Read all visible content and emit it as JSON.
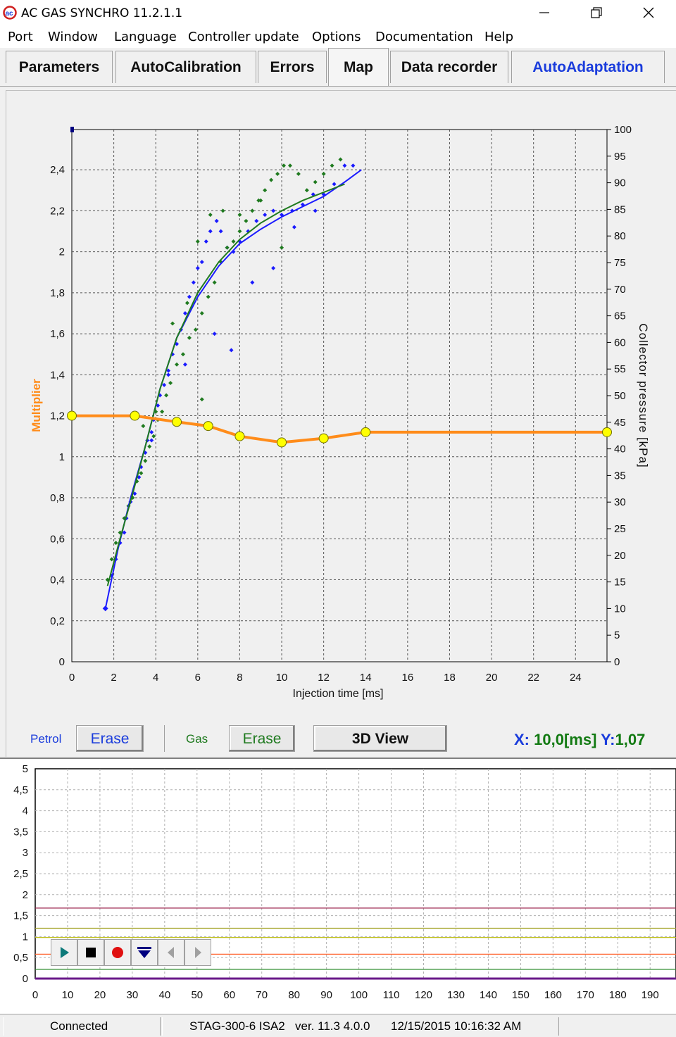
{
  "window": {
    "title": "AC GAS SYNCHRO  11.2.1.1",
    "minimize_icon": "minimize-icon",
    "restore_icon": "restore-icon",
    "close_icon": "close-icon"
  },
  "menu": [
    "Port",
    "Window",
    "Language",
    "Controller update",
    "Options",
    "Documentation",
    "Help"
  ],
  "tabs": [
    {
      "label": "Parameters"
    },
    {
      "label": "AutoCalibration"
    },
    {
      "label": "Errors"
    },
    {
      "label": "Map"
    },
    {
      "label": "Data recorder"
    },
    {
      "label": "AutoAdaptation"
    }
  ],
  "colors": {
    "petrol": "#1a1aff",
    "gas": "#1f7a1f",
    "multiplier": "#ff8c1a",
    "readout_blue": "#1a3cdc",
    "readout_green": "#127a12"
  },
  "controls": {
    "petrol_label": "Petrol",
    "petrol_erase": "Erase",
    "gas_label": "Gas",
    "gas_erase": "Erase",
    "view_3d": "3D View",
    "readout_x_label": "X:",
    "readout_x_value": "10,0[ms]",
    "readout_y_label": "Y:",
    "readout_y_value": "1,07"
  },
  "chart_data": [
    {
      "type": "scatter",
      "xlabel": "Injection time [ms]",
      "ylabel": "Multiplier",
      "y2label": "Collector pressure [kPa]",
      "xlim": [
        0,
        25.5
      ],
      "ylim": [
        0,
        2.5
      ],
      "y2lim": [
        0,
        100
      ],
      "x_ticks": [
        "0",
        "2",
        "4",
        "6",
        "8",
        "10",
        "12",
        "14",
        "16",
        "18",
        "20",
        "22",
        "24"
      ],
      "y_ticks": [
        "0",
        "0,2",
        "0,4",
        "0,6",
        "0,8",
        "1",
        "1,2",
        "1,4",
        "1,6",
        "1,8",
        "2",
        "2,2",
        "2,4"
      ],
      "y2_ticks": [
        "0",
        "5",
        "10",
        "15",
        "20",
        "25",
        "30",
        "35",
        "40",
        "45",
        "50",
        "55",
        "60",
        "65",
        "70",
        "75",
        "80",
        "85",
        "90",
        "95",
        "100"
      ],
      "grid": true,
      "series": [
        {
          "name": "Multiplier",
          "kind": "line-markers",
          "x": [
            0,
            3,
            5,
            6.5,
            8,
            10,
            12,
            14,
            25.5
          ],
          "y": [
            1.2,
            1.2,
            1.17,
            1.15,
            1.1,
            1.07,
            1.09,
            1.12,
            1.12
          ]
        },
        {
          "name": "Petrol",
          "kind": "curve",
          "x": [
            1.6,
            2.2,
            2.8,
            3.5,
            4.2,
            5.0,
            6.0,
            7.0,
            8.0,
            9.0,
            10.0,
            11.0,
            12.0,
            13.0,
            13.8
          ],
          "y": [
            0.26,
            0.55,
            0.8,
            1.05,
            1.33,
            1.58,
            1.78,
            1.93,
            2.04,
            2.11,
            2.17,
            2.22,
            2.27,
            2.34,
            2.4
          ]
        },
        {
          "name": "Gas",
          "kind": "curve",
          "x": [
            1.7,
            2.3,
            2.9,
            3.5,
            4.2,
            5.0,
            6.0,
            7.0,
            8.0,
            9.0,
            10.0,
            11.0,
            12.0,
            13.0
          ],
          "y": [
            0.37,
            0.6,
            0.82,
            1.05,
            1.33,
            1.58,
            1.8,
            1.95,
            2.06,
            2.14,
            2.2,
            2.25,
            2.29,
            2.33
          ]
        },
        {
          "name": "Petrol points",
          "kind": "points",
          "x": [
            1.6,
            1.9,
            2.1,
            2.3,
            2.5,
            2.6,
            2.8,
            3.0,
            3.2,
            3.3,
            3.5,
            3.6,
            3.8,
            3.9,
            4.1,
            4.2,
            4.4,
            4.6,
            4.8,
            5.0,
            5.2,
            5.4,
            5.6,
            5.8,
            6.0,
            6.2,
            6.4,
            6.6,
            6.9,
            7.1,
            7.4,
            7.7,
            8.0,
            8.4,
            8.8,
            9.2,
            9.6,
            10.0,
            10.5,
            11.0,
            11.5,
            12.0,
            12.5,
            13.0,
            13.4,
            3.8,
            4.6,
            5.4,
            6.8,
            7.6,
            8.6,
            9.6,
            10.6,
            11.6
          ],
          "y": [
            0.26,
            0.42,
            0.5,
            0.58,
            0.63,
            0.7,
            0.78,
            0.82,
            0.9,
            0.95,
            1.02,
            1.08,
            1.12,
            1.18,
            1.25,
            1.3,
            1.35,
            1.42,
            1.5,
            1.55,
            1.62,
            1.7,
            1.78,
            1.85,
            1.92,
            1.95,
            2.05,
            2.1,
            2.15,
            2.1,
            2.02,
            2.0,
            2.05,
            2.1,
            2.15,
            2.18,
            2.2,
            2.18,
            2.2,
            2.23,
            2.28,
            2.28,
            2.33,
            2.42,
            2.42,
            1.08,
            1.4,
            1.45,
            1.6,
            1.52,
            1.85,
            1.92,
            2.12,
            2.2
          ]
        },
        {
          "name": "Gas points",
          "kind": "points",
          "x": [
            1.7,
            1.9,
            2.1,
            2.3,
            2.5,
            2.7,
            2.9,
            3.1,
            3.3,
            3.5,
            3.7,
            3.9,
            4.1,
            4.3,
            4.5,
            4.7,
            5.0,
            5.3,
            5.6,
            5.9,
            6.2,
            6.5,
            6.8,
            7.1,
            7.4,
            7.7,
            8.0,
            8.3,
            8.6,
            8.9,
            9.2,
            9.5,
            9.8,
            10.1,
            10.4,
            10.8,
            11.2,
            11.6,
            12.0,
            12.4,
            12.8,
            3.4,
            4.0,
            4.8,
            5.5,
            6.0,
            6.6,
            7.2,
            8.0,
            9.0,
            10.0,
            6.2
          ],
          "y": [
            0.4,
            0.5,
            0.58,
            0.63,
            0.7,
            0.76,
            0.8,
            0.88,
            0.92,
            0.98,
            1.05,
            1.1,
            1.18,
            1.22,
            1.3,
            1.36,
            1.45,
            1.5,
            1.58,
            1.62,
            1.7,
            1.78,
            1.85,
            1.95,
            2.02,
            2.05,
            2.1,
            2.15,
            2.2,
            2.25,
            2.3,
            2.35,
            2.38,
            2.42,
            2.42,
            2.38,
            2.3,
            2.34,
            2.38,
            2.42,
            2.45,
            1.15,
            1.22,
            1.65,
            1.75,
            2.05,
            2.18,
            2.2,
            2.18,
            2.25,
            2.02,
            1.28
          ]
        }
      ]
    },
    {
      "type": "line",
      "xlim": [
        0,
        198
      ],
      "ylim": [
        0,
        5
      ],
      "x_ticks": [
        "0",
        "10",
        "20",
        "30",
        "40",
        "50",
        "60",
        "70",
        "80",
        "90",
        "100",
        "110",
        "120",
        "130",
        "140",
        "150",
        "160",
        "170",
        "180",
        "190"
      ],
      "y_ticks": [
        "0",
        "0,5",
        "1",
        "1,5",
        "2",
        "2,5",
        "3",
        "3,5",
        "4",
        "4,5",
        "5"
      ],
      "grid": true,
      "series": [
        {
          "color": "#9a1f4a",
          "y": 1.68
        },
        {
          "color": "#a0a020",
          "y": 1.2
        },
        {
          "color": "#c0c020",
          "y": 0.98
        },
        {
          "color": "#ff6633",
          "y": 0.58
        },
        {
          "color": "#2a8a2a",
          "y": 0.22
        },
        {
          "color": "#6a1a8a",
          "y": 0.0
        }
      ]
    }
  ],
  "player": [
    {
      "icon": "play-icon"
    },
    {
      "icon": "stop-icon"
    },
    {
      "icon": "record-icon"
    },
    {
      "icon": "download-icon"
    },
    {
      "icon": "arrow-left-icon"
    },
    {
      "icon": "arrow-right-icon"
    }
  ],
  "status": {
    "connection": "Connected",
    "device": "STAG-300-6 ISA2",
    "version": "ver. 11.3  4.0.0",
    "datetime": "12/15/2015 10:16:32 AM"
  }
}
